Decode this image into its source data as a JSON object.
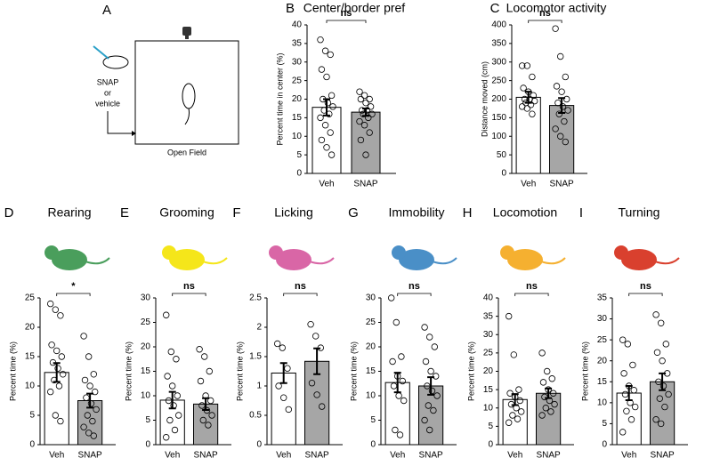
{
  "panel_a": {
    "label": "A",
    "injection": [
      "SNAP",
      "or",
      "vehicle"
    ],
    "caption": "Open Field"
  },
  "chart_data": [
    {
      "type": "bar",
      "panel": "B",
      "title": "Center/border pref",
      "ylabel": "Percent time in center (%)",
      "categories": [
        "Veh",
        "SNAP"
      ],
      "values": [
        17.8,
        16.5
      ],
      "errors": [
        2.2,
        1.0
      ],
      "points": [
        [
          36,
          33,
          32,
          28,
          26,
          21,
          20,
          19,
          18,
          17,
          16,
          15,
          13,
          11,
          9,
          7,
          5
        ],
        [
          22,
          21,
          20,
          20,
          19,
          18,
          17,
          17,
          16,
          16,
          15,
          14,
          13,
          11,
          9,
          5
        ]
      ],
      "colors": [
        "#ffffff",
        "#a6a6a6"
      ],
      "ylim": [
        0,
        40
      ],
      "yticks": [
        0,
        5,
        10,
        15,
        20,
        25,
        30,
        35,
        40
      ],
      "significance": "ns"
    },
    {
      "type": "bar",
      "panel": "C",
      "title": "Locomotor activity",
      "ylabel": "Distance moved (cm)",
      "categories": [
        "Veh",
        "SNAP"
      ],
      "values": [
        205,
        183
      ],
      "errors": [
        15,
        20
      ],
      "points": [
        [
          290,
          290,
          260,
          230,
          220,
          210,
          200,
          200,
          195,
          190,
          185,
          180,
          175,
          160
        ],
        [
          390,
          315,
          260,
          235,
          220,
          200,
          190,
          180,
          170,
          160,
          140,
          120,
          100,
          85
        ]
      ],
      "colors": [
        "#ffffff",
        "#a6a6a6"
      ],
      "ylim": [
        0,
        400
      ],
      "yticks": [
        0,
        50,
        100,
        150,
        200,
        250,
        300,
        350,
        400
      ],
      "significance": "ns"
    },
    {
      "type": "bar",
      "panel": "D",
      "title": "Rearing",
      "icon_color": "#4a9e5c",
      "ylabel": "Percent time (%)",
      "categories": [
        "Veh",
        "SNAP"
      ],
      "values": [
        12.3,
        7.5
      ],
      "errors": [
        1.6,
        1.2
      ],
      "points": [
        [
          24,
          23,
          22,
          17,
          16,
          15,
          14,
          13,
          12,
          11,
          10,
          9,
          5,
          4
        ],
        [
          18.5,
          15,
          12,
          11,
          10,
          9,
          8,
          7,
          6,
          5,
          4,
          3,
          2,
          1.5
        ]
      ],
      "colors": [
        "#ffffff",
        "#a6a6a6"
      ],
      "ylim": [
        0,
        25
      ],
      "yticks": [
        0,
        5,
        10,
        15,
        20,
        25
      ],
      "significance": "*"
    },
    {
      "type": "bar",
      "panel": "E",
      "title": "Grooming",
      "icon_color": "#f5e61a",
      "ylabel": "Percent time (%)",
      "categories": [
        "Veh",
        "SNAP"
      ],
      "values": [
        9.1,
        8.3
      ],
      "errors": [
        1.7,
        1.2
      ],
      "points": [
        [
          26.5,
          19,
          17.5,
          14,
          12,
          10,
          9,
          8,
          6,
          5,
          3,
          1.5
        ],
        [
          19.5,
          18,
          15,
          13,
          10,
          9,
          8,
          7,
          6,
          5,
          4
        ]
      ],
      "colors": [
        "#ffffff",
        "#a6a6a6"
      ],
      "ylim": [
        0,
        30
      ],
      "yticks": [
        0,
        5,
        10,
        15,
        20,
        25,
        30
      ],
      "significance": "ns"
    },
    {
      "type": "bar",
      "panel": "F",
      "title": "Licking",
      "icon_color": "#d966a6",
      "ylabel": "Percent time (%)",
      "categories": [
        "Veh",
        "SNAP"
      ],
      "values": [
        1.22,
        1.42
      ],
      "errors": [
        0.17,
        0.22
      ],
      "points": [
        [
          1.72,
          1.65,
          1.3,
          1.0,
          0.8,
          0.6
        ],
        [
          2.05,
          1.85,
          1.65,
          1.05,
          0.85,
          0.65
        ]
      ],
      "colors": [
        "#ffffff",
        "#a6a6a6"
      ],
      "ylim": [
        0,
        2.5
      ],
      "yticks": [
        0,
        0.5,
        1,
        1.5,
        2,
        2.5
      ],
      "significance": "ns"
    },
    {
      "type": "bar",
      "panel": "G",
      "title": "Immobility",
      "icon_color": "#4a8fc7",
      "ylabel": "Percent time (%)",
      "categories": [
        "Veh",
        "SNAP"
      ],
      "values": [
        12.7,
        12.0
      ],
      "errors": [
        2.0,
        1.8
      ],
      "points": [
        [
          30,
          25,
          18,
          17,
          14,
          13,
          12,
          10,
          9,
          3,
          2
        ],
        [
          24,
          22,
          20,
          17,
          15,
          14,
          12,
          11,
          10,
          8,
          7,
          5,
          3
        ]
      ],
      "colors": [
        "#ffffff",
        "#a6a6a6"
      ],
      "ylim": [
        0,
        30
      ],
      "yticks": [
        0,
        5,
        10,
        15,
        20,
        25,
        30
      ],
      "significance": "ns"
    },
    {
      "type": "bar",
      "panel": "H",
      "title": "Locomotion",
      "icon_color": "#f5b030",
      "ylabel": "Percent time (%)",
      "categories": [
        "Veh",
        "SNAP"
      ],
      "values": [
        12.3,
        14.0
      ],
      "errors": [
        1.5,
        1.3
      ],
      "points": [
        [
          35,
          24.5,
          15,
          14,
          13,
          12,
          11,
          10,
          9,
          8,
          7,
          6
        ],
        [
          25,
          20,
          18,
          17,
          15,
          14,
          13,
          12,
          11,
          10,
          9,
          8
        ]
      ],
      "colors": [
        "#ffffff",
        "#a6a6a6"
      ],
      "ylim": [
        0,
        40
      ],
      "yticks": [
        0,
        5,
        10,
        15,
        20,
        25,
        30,
        35,
        40
      ],
      "significance": "ns"
    },
    {
      "type": "bar",
      "panel": "I",
      "title": "Turning",
      "icon_color": "#d9402e",
      "ylabel": "Percent time (%)",
      "categories": [
        "Veh",
        "SNAP"
      ],
      "values": [
        12.3,
        15.0
      ],
      "errors": [
        1.7,
        2.0
      ],
      "points": [
        [
          25,
          24,
          19,
          17,
          14,
          13,
          12,
          10,
          9,
          8,
          6,
          3
        ],
        [
          31,
          29,
          24,
          22,
          20,
          17,
          15,
          14,
          12,
          11,
          9,
          6,
          5
        ]
      ],
      "colors": [
        "#ffffff",
        "#a6a6a6"
      ],
      "ylim": [
        0,
        35
      ],
      "yticks": [
        0,
        5,
        10,
        15,
        20,
        25,
        30,
        35
      ],
      "significance": "ns"
    }
  ]
}
